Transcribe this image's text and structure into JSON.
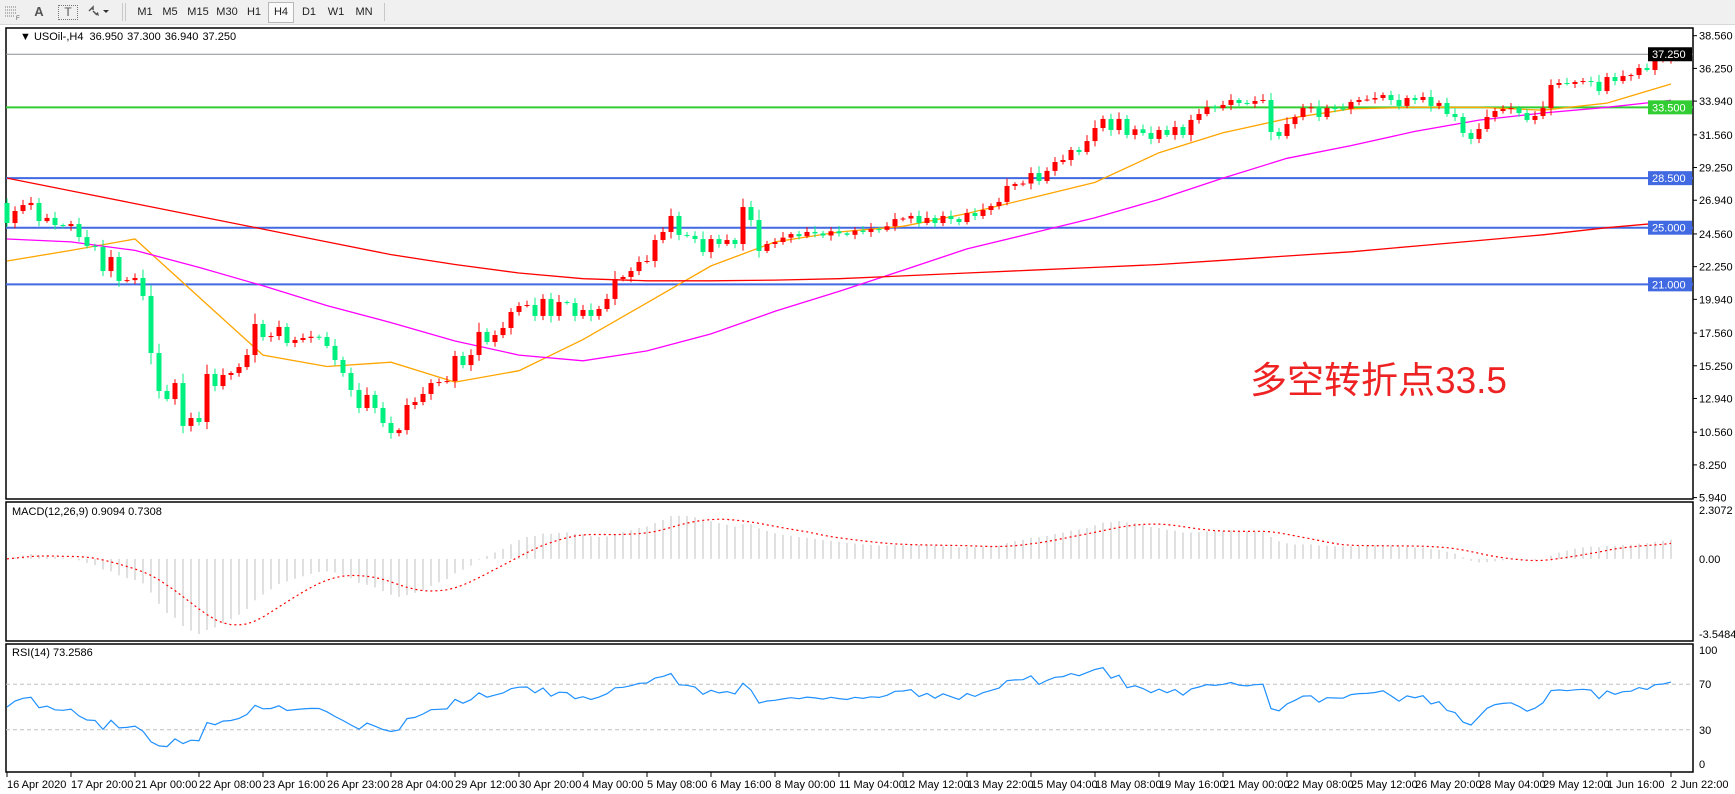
{
  "toolbar": {
    "icons": [
      "period-separator-icon",
      "text-icon",
      "text-label-icon",
      "arrows-icon"
    ],
    "text_icon_glyph": "A",
    "label_icon_glyph": "T",
    "timeframes": [
      "M1",
      "M5",
      "M15",
      "M30",
      "H1",
      "H4",
      "D1",
      "W1",
      "MN"
    ],
    "selected_timeframe": "H4"
  },
  "header": {
    "symbol": "USOil-,H4",
    "open": "36.950",
    "high": "37.300",
    "low": "36.940",
    "close": "37.250"
  },
  "price_axis": {
    "range": [
      5.94,
      38.56
    ],
    "ticks": [
      "38.560",
      "36.250",
      "33.940",
      "31.560",
      "29.250",
      "26.940",
      "24.560",
      "22.250",
      "19.940",
      "17.560",
      "15.250",
      "12.940",
      "10.560",
      "8.250",
      "5.940"
    ]
  },
  "levels": [
    {
      "value": 33.5,
      "label": "33.500",
      "color": "#32cd32"
    },
    {
      "value": 28.5,
      "label": "28.500",
      "color": "#4169e1"
    },
    {
      "value": 25.0,
      "label": "25.000",
      "color": "#4169e1"
    },
    {
      "value": 21.0,
      "label": "21.000",
      "color": "#4169e1"
    }
  ],
  "bid": {
    "value": 37.25,
    "label": "37.250"
  },
  "annotation": {
    "text": "多空转折点33.5",
    "color": "#ee2222"
  },
  "colors": {
    "bull": "#ff0000",
    "bear": "#00f080",
    "ma_fast": "#ffa500",
    "ma_mid": "#ff00ff",
    "ma_slow": "#ff0000",
    "macd_hist": "#c0c0c0",
    "macd_signal": "#ff0000",
    "rsi": "#1e90ff"
  },
  "time_axis": [
    "16 Apr 2020",
    "17 Apr 20:00",
    "21 Apr 00:00",
    "22 Apr 08:00",
    "23 Apr 16:00",
    "26 Apr 23:00",
    "28 Apr 04:00",
    "29 Apr 12:00",
    "30 Apr 20:00",
    "4 May 00:00",
    "5 May 08:00",
    "6 May 16:00",
    "8 May 00:00",
    "11 May 04:00",
    "12 May 12:00",
    "13 May 22:00",
    "15 May 04:00",
    "18 May 08:00",
    "19 May 16:00",
    "21 May 00:00",
    "22 May 08:00",
    "25 May 12:00",
    "26 May 20:00",
    "28 May 04:00",
    "29 May 12:00",
    "1 Jun 16:00",
    "2 Jun 22:00"
  ],
  "ohlc": {
    "first_open": 26.75,
    "close": [
      25.33,
      26.18,
      26.6,
      26.75,
      25.47,
      25.69,
      25.19,
      25.12,
      25.26,
      24.34,
      23.71,
      23.64,
      21.94,
      22.93,
      21.24,
      21.3,
      21.45,
      20.18,
      16.15,
      13.47,
      12.9,
      14.03,
      11.0,
      11.56,
      11.28,
      14.67,
      13.82,
      14.6,
      14.74,
      15.16,
      16.01,
      18.2,
      17.28,
      17.35,
      17.99,
      16.86,
      17.07,
      17.21,
      17.3,
      17.28,
      16.65,
      15.66,
      14.74,
      13.54,
      12.27,
      13.19,
      12.27,
      11.21,
      10.5,
      10.71,
      12.48,
      12.69,
      13.26,
      14.03,
      14.1,
      14.17,
      15.94,
      15.3,
      16.01,
      17.64,
      16.93,
      17.42,
      17.92,
      19.05,
      19.47,
      19.54,
      18.77,
      19.97,
      18.77,
      19.75,
      19.68,
      18.77,
      19.19,
      18.77,
      19.26,
      19.97,
      21.38,
      21.52,
      21.94,
      22.58,
      22.65,
      24.13,
      24.7,
      25.83,
      24.49,
      24.42,
      24.2,
      23.28,
      24.2,
      23.85,
      24.13,
      23.85,
      26.46,
      25.54,
      23.36,
      23.85,
      23.99,
      24.3,
      24.55,
      24.4,
      24.7,
      24.6,
      24.45,
      24.75,
      24.6,
      24.5,
      24.8,
      24.7,
      24.9,
      24.85,
      25.1,
      25.61,
      25.65,
      25.83,
      25.33,
      25.69,
      25.33,
      25.83,
      25.61,
      25.4,
      26.04,
      25.83,
      26.25,
      26.53,
      26.82,
      27.95,
      28.09,
      28.12,
      28.86,
      28.3,
      29.01,
      29.64,
      29.78,
      30.49,
      30.35,
      31.12,
      32.04,
      32.68,
      31.9,
      32.68,
      31.55,
      31.95,
      31.69,
      31.27,
      31.9,
      31.55,
      32.11,
      31.55,
      32.61,
      33.03,
      33.52,
      33.45,
      33.67,
      34.02,
      33.81,
      33.75,
      33.95,
      34.02,
      31.76,
      31.48,
      32.32,
      32.82,
      33.45,
      33.5,
      32.82,
      33.45,
      33.42,
      33.4,
      33.88,
      34.02,
      34.05,
      34.16,
      34.37,
      34.02,
      33.6,
      34.16,
      34.02,
      34.23,
      33.6,
      33.81,
      33.03,
      32.82,
      31.69,
      31.27,
      31.97,
      32.82,
      33.24,
      33.38,
      33.45,
      33.1,
      32.61,
      32.89,
      33.45,
      35.08,
      35.22,
      35.15,
      35.29,
      35.36,
      35.3,
      34.65,
      35.64,
      35.36,
      35.71,
      35.78,
      36.28,
      36.14,
      36.84,
      36.95,
      37.25
    ]
  },
  "moving_averages_at_time_labels": {
    "fast": [
      22.65,
      23.4,
      24.2,
      20.1,
      16.0,
      15.2,
      15.5,
      14.1,
      14.9,
      17.1,
      19.7,
      22.3,
      24.0,
      24.7,
      25.1,
      26.0,
      27.1,
      28.2,
      30.3,
      31.7,
      32.7,
      33.4,
      33.5,
      33.5,
      33.3,
      33.8,
      35.15
    ],
    "mid": [
      24.2,
      24.0,
      23.4,
      22.2,
      20.9,
      19.5,
      18.3,
      17.0,
      16.0,
      15.6,
      16.3,
      17.5,
      19.1,
      20.5,
      22.0,
      23.5,
      24.6,
      25.7,
      27.0,
      28.5,
      29.9,
      30.8,
      31.8,
      32.6,
      33.1,
      33.5,
      34.0
    ],
    "slow": [
      28.5,
      27.6,
      26.7,
      25.8,
      24.9,
      24.0,
      23.1,
      22.4,
      21.8,
      21.4,
      21.25,
      21.25,
      21.3,
      21.4,
      21.6,
      21.8,
      22.0,
      22.2,
      22.4,
      22.7,
      23.0,
      23.3,
      23.7,
      24.1,
      24.5,
      25.0,
      25.4
    ]
  },
  "macd": {
    "title": "MACD(12,26,9) 0.9094 0.7308",
    "ticks": [
      "2.3072",
      "0.00",
      "-3.5484"
    ],
    "range": [
      -3.5484,
      2.3072
    ]
  },
  "rsi": {
    "title": "RSI(14) 73.2586",
    "ticks": [
      "100",
      "70",
      "30",
      "0"
    ],
    "levels": [
      70,
      30
    ]
  }
}
